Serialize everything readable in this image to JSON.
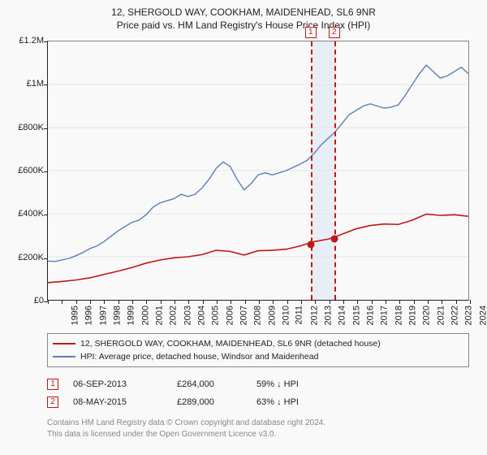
{
  "title": "12, SHERGOLD WAY, COOKHAM, MAIDENHEAD, SL6 9NR",
  "subtitle": "Price paid vs. HM Land Registry's House Price Index (HPI)",
  "chart": {
    "type": "line",
    "background_color": "#f9f9f9",
    "axis_color": "#222222",
    "grid_color": "#e5e5e5",
    "title_fontsize": 12,
    "label_fontsize": 11,
    "x": {
      "min": 1995,
      "max": 2025,
      "tick_step": 1
    },
    "y": {
      "min": 0,
      "max": 1200000,
      "tick_step": 200000,
      "format_prefix": "£",
      "suffixes": {
        "1000000": "M",
        "1000": "K"
      }
    },
    "ylabels": [
      "£0",
      "£200K",
      "£400K",
      "£600K",
      "£800K",
      "£1M",
      "£1.2M"
    ],
    "xlabels": [
      "1995",
      "1996",
      "1997",
      "1998",
      "1999",
      "2000",
      "2001",
      "2002",
      "2003",
      "2004",
      "2005",
      "2006",
      "2007",
      "2008",
      "2009",
      "2010",
      "2011",
      "2012",
      "2013",
      "2014",
      "2015",
      "2016",
      "2017",
      "2018",
      "2019",
      "2020",
      "2021",
      "2022",
      "2023",
      "2024",
      "2025"
    ],
    "series": [
      {
        "id": "price_paid",
        "color": "#c01717",
        "width": 1.6,
        "label": "12, SHERGOLD WAY, COOKHAM, MAIDENHEAD, SL6 9NR (detached house)",
        "points": [
          [
            1995,
            80000
          ],
          [
            1996,
            85000
          ],
          [
            1997,
            92000
          ],
          [
            1998,
            102000
          ],
          [
            1999,
            118000
          ],
          [
            2000,
            133000
          ],
          [
            2001,
            150000
          ],
          [
            2002,
            170000
          ],
          [
            2003,
            185000
          ],
          [
            2004,
            195000
          ],
          [
            2005,
            200000
          ],
          [
            2006,
            210000
          ],
          [
            2007,
            230000
          ],
          [
            2008,
            225000
          ],
          [
            2009,
            208000
          ],
          [
            2010,
            228000
          ],
          [
            2011,
            230000
          ],
          [
            2012,
            235000
          ],
          [
            2013,
            250000
          ],
          [
            2013.68,
            264000
          ],
          [
            2014,
            270000
          ],
          [
            2015,
            282000
          ],
          [
            2015.35,
            289000
          ],
          [
            2016,
            305000
          ],
          [
            2017,
            330000
          ],
          [
            2018,
            345000
          ],
          [
            2019,
            352000
          ],
          [
            2020,
            350000
          ],
          [
            2021,
            370000
          ],
          [
            2022,
            398000
          ],
          [
            2023,
            392000
          ],
          [
            2024,
            395000
          ],
          [
            2025,
            388000
          ]
        ]
      },
      {
        "id": "hpi",
        "color": "#5a7fb8",
        "width": 1.4,
        "label": "HPI: Average price, detached house, Windsor and Maidenhead",
        "points": [
          [
            1995,
            180000
          ],
          [
            1995.5,
            178000
          ],
          [
            1996,
            185000
          ],
          [
            1996.5,
            192000
          ],
          [
            1997,
            205000
          ],
          [
            1997.5,
            220000
          ],
          [
            1998,
            238000
          ],
          [
            1998.5,
            250000
          ],
          [
            1999,
            270000
          ],
          [
            1999.5,
            295000
          ],
          [
            2000,
            320000
          ],
          [
            2000.5,
            340000
          ],
          [
            2001,
            360000
          ],
          [
            2001.5,
            370000
          ],
          [
            2002,
            395000
          ],
          [
            2002.5,
            430000
          ],
          [
            2003,
            450000
          ],
          [
            2003.5,
            460000
          ],
          [
            2004,
            470000
          ],
          [
            2004.5,
            490000
          ],
          [
            2005,
            480000
          ],
          [
            2005.5,
            490000
          ],
          [
            2006,
            520000
          ],
          [
            2006.5,
            560000
          ],
          [
            2007,
            610000
          ],
          [
            2007.5,
            640000
          ],
          [
            2008,
            620000
          ],
          [
            2008.5,
            560000
          ],
          [
            2009,
            510000
          ],
          [
            2009.5,
            540000
          ],
          [
            2010,
            580000
          ],
          [
            2010.5,
            590000
          ],
          [
            2011,
            580000
          ],
          [
            2011.5,
            590000
          ],
          [
            2012,
            600000
          ],
          [
            2012.5,
            615000
          ],
          [
            2013,
            630000
          ],
          [
            2013.5,
            648000
          ],
          [
            2014,
            680000
          ],
          [
            2014.5,
            720000
          ],
          [
            2015,
            750000
          ],
          [
            2015.5,
            780000
          ],
          [
            2016,
            820000
          ],
          [
            2016.5,
            860000
          ],
          [
            2017,
            880000
          ],
          [
            2017.5,
            900000
          ],
          [
            2018,
            910000
          ],
          [
            2018.5,
            900000
          ],
          [
            2019,
            890000
          ],
          [
            2019.5,
            895000
          ],
          [
            2020,
            905000
          ],
          [
            2020.5,
            950000
          ],
          [
            2021,
            1000000
          ],
          [
            2021.5,
            1050000
          ],
          [
            2022,
            1090000
          ],
          [
            2022.5,
            1060000
          ],
          [
            2023,
            1030000
          ],
          [
            2023.5,
            1040000
          ],
          [
            2024,
            1060000
          ],
          [
            2024.5,
            1080000
          ],
          [
            2025,
            1050000
          ]
        ]
      }
    ],
    "shaded": {
      "from": 2013.68,
      "to": 2015.35,
      "color": "#dbe6f4"
    },
    "markers": [
      {
        "n": "1",
        "x": 2013.68,
        "y": 264000,
        "color": "#c01717"
      },
      {
        "n": "2",
        "x": 2015.35,
        "y": 289000,
        "color": "#c01717"
      }
    ],
    "marker_label_y_top": -18
  },
  "legend": [
    {
      "color": "#c01717",
      "text": "12, SHERGOLD WAY, COOKHAM, MAIDENHEAD, SL6 9NR (detached house)"
    },
    {
      "color": "#5a7fb8",
      "text": "HPI: Average price, detached house, Windsor and Maidenhead"
    }
  ],
  "transactions": [
    {
      "n": "1",
      "color": "#c01717",
      "date": "06-SEP-2013",
      "price": "£264,000",
      "hpi_pct": "59%",
      "arrow": "↓",
      "hpi_label": "HPI"
    },
    {
      "n": "2",
      "color": "#c01717",
      "date": "08-MAY-2015",
      "price": "£289,000",
      "hpi_pct": "63%",
      "arrow": "↓",
      "hpi_label": "HPI"
    }
  ],
  "credits": [
    "Contains HM Land Registry data © Crown copyright and database right 2024.",
    "This data is licensed under the Open Government Licence v3.0."
  ]
}
